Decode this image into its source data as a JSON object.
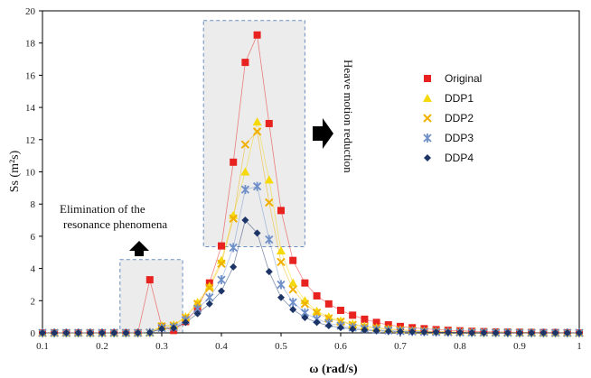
{
  "chart_data": {
    "type": "scatter",
    "xlabel": "ω (rad/s)",
    "ylabel": "Ss (m²s)",
    "xlim": [
      0.1,
      1.0
    ],
    "ylim": [
      0,
      20
    ],
    "xticks": [
      "0.1",
      "0.2",
      "0.3",
      "0.4",
      "0.5",
      "0.6",
      "0.7",
      "0.8",
      "0.9",
      "1"
    ],
    "yticks": [
      "0",
      "2",
      "4",
      "6",
      "8",
      "10",
      "12",
      "14",
      "16",
      "18",
      "20"
    ],
    "grid": false,
    "legend_position": "right",
    "annotations": {
      "resonance": [
        "Elimination of the",
        "resonance phenomena"
      ],
      "heave": "Heave motion reduction"
    },
    "x": [
      0.1,
      0.12,
      0.14,
      0.16,
      0.18,
      0.2,
      0.22,
      0.24,
      0.26,
      0.28,
      0.3,
      0.32,
      0.34,
      0.36,
      0.38,
      0.4,
      0.42,
      0.44,
      0.46,
      0.48,
      0.5,
      0.52,
      0.54,
      0.56,
      0.58,
      0.6,
      0.62,
      0.64,
      0.66,
      0.68,
      0.7,
      0.72,
      0.74,
      0.76,
      0.78,
      0.8,
      0.82,
      0.84,
      0.86,
      0.88,
      0.9,
      0.92,
      0.94,
      0.96,
      0.98,
      1.0
    ],
    "series": [
      {
        "name": "Original",
        "color": "#e8231f",
        "marker": "square",
        "values": [
          0,
          0,
          0,
          0,
          0,
          0,
          0,
          0,
          0,
          3.3,
          0.4,
          0.15,
          0.7,
          1.5,
          3.1,
          5.4,
          10.6,
          16.8,
          18.5,
          13.0,
          7.6,
          4.5,
          3.1,
          2.3,
          1.8,
          1.4,
          1.1,
          0.85,
          0.65,
          0.5,
          0.4,
          0.32,
          0.26,
          0.2,
          0.16,
          0.13,
          0.1,
          0.08,
          0.06,
          0.05,
          0.04,
          0.03,
          0.02,
          0.02,
          0.01,
          0
        ]
      },
      {
        "name": "DDP1",
        "color": "#f5d90a",
        "marker": "triangle",
        "values": [
          0,
          0,
          0,
          0,
          0,
          0,
          0,
          0,
          0,
          0.02,
          0.45,
          0.5,
          1.0,
          1.9,
          2.9,
          4.5,
          7.3,
          10.0,
          13.1,
          9.5,
          5.1,
          3.1,
          2.0,
          1.35,
          1.0,
          0.75,
          0.55,
          0.42,
          0.32,
          0.25,
          0.2,
          0.15,
          0.12,
          0.09,
          0.07,
          0.05,
          0.04,
          0.03,
          0.02,
          0.02,
          0.01,
          0.01,
          0,
          0,
          0,
          0
        ]
      },
      {
        "name": "DDP2",
        "color": "#f0b000",
        "marker": "cross",
        "values": [
          0,
          0,
          0,
          0,
          0,
          0,
          0,
          0,
          0,
          0.02,
          0.4,
          0.45,
          0.95,
          1.8,
          2.8,
          4.3,
          7.1,
          11.7,
          12.5,
          8.1,
          4.4,
          2.7,
          1.8,
          1.25,
          0.9,
          0.7,
          0.5,
          0.38,
          0.3,
          0.23,
          0.18,
          0.14,
          0.11,
          0.08,
          0.06,
          0.05,
          0.04,
          0.03,
          0.02,
          0.02,
          0.01,
          0.01,
          0,
          0,
          0,
          0
        ]
      },
      {
        "name": "DDP3",
        "color": "#6f8fc8",
        "marker": "star",
        "values": [
          0,
          0,
          0,
          0,
          0,
          0,
          0,
          0,
          0,
          0.02,
          0.3,
          0.35,
          0.8,
          1.5,
          2.2,
          3.3,
          5.3,
          8.9,
          9.1,
          5.8,
          3.0,
          1.9,
          1.25,
          0.85,
          0.6,
          0.45,
          0.33,
          0.25,
          0.19,
          0.15,
          0.11,
          0.09,
          0.07,
          0.05,
          0.04,
          0.03,
          0.02,
          0.02,
          0.01,
          0.01,
          0,
          0,
          0,
          0,
          0,
          0
        ]
      },
      {
        "name": "DDP4",
        "color": "#1c3466",
        "marker": "diamond",
        "values": [
          0,
          0,
          0,
          0,
          0,
          0,
          0,
          0,
          0,
          0.02,
          0.25,
          0.3,
          0.65,
          1.2,
          1.8,
          2.6,
          4.1,
          7.0,
          6.2,
          3.8,
          2.2,
          1.45,
          0.95,
          0.65,
          0.45,
          0.33,
          0.24,
          0.18,
          0.13,
          0.1,
          0.08,
          0.06,
          0.05,
          0.04,
          0.03,
          0.02,
          0.01,
          0.01,
          0,
          0,
          0,
          0,
          0,
          0,
          0,
          0
        ]
      }
    ]
  }
}
